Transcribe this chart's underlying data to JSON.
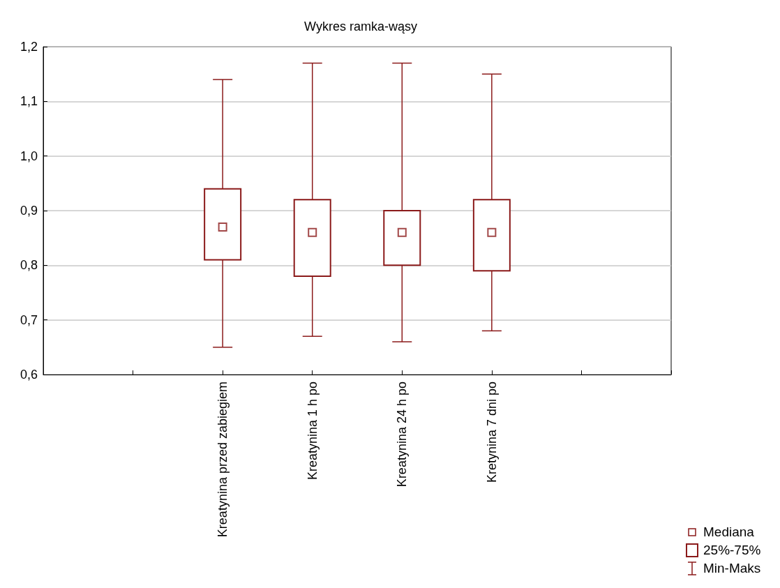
{
  "chart_data": {
    "type": "box",
    "title": "Wykres ramka-wąsy",
    "categories": [
      null,
      null,
      "Kreatynina przed zabiegiem",
      "Kreatynina 1 h po",
      "Kreatynina 24 h po",
      "Kretynina 7 dni po",
      null,
      null
    ],
    "series": [
      {
        "color": "#8b1a1a",
        "boxes": [
          null,
          null,
          {
            "low": 0.65,
            "q1": 0.81,
            "median": 0.87,
            "q3": 0.94,
            "high": 1.14
          },
          {
            "low": 0.67,
            "q1": 0.78,
            "median": 0.86,
            "q3": 0.92,
            "high": 1.17
          },
          {
            "low": 0.66,
            "q1": 0.8,
            "median": 0.86,
            "q3": 0.9,
            "high": 1.17
          },
          {
            "low": 0.68,
            "q1": 0.79,
            "median": 0.86,
            "q3": 0.92,
            "high": 1.15
          },
          null,
          null
        ]
      }
    ],
    "ylim": [
      0.6,
      1.2
    ],
    "yticks": [
      {
        "value": 0.6,
        "label": "0,6"
      },
      {
        "value": 0.7,
        "label": "0,7"
      },
      {
        "value": 0.8,
        "label": "0,8"
      },
      {
        "value": 0.9,
        "label": "0,9"
      },
      {
        "value": 1.0,
        "label": "1,0"
      },
      {
        "value": 1.1,
        "label": "1,1"
      },
      {
        "value": 1.2,
        "label": "1,2"
      }
    ],
    "grid": "y",
    "marker": "square",
    "annotations": [
      "Mediana",
      "25%-75%",
      "Min-Maks"
    ]
  }
}
